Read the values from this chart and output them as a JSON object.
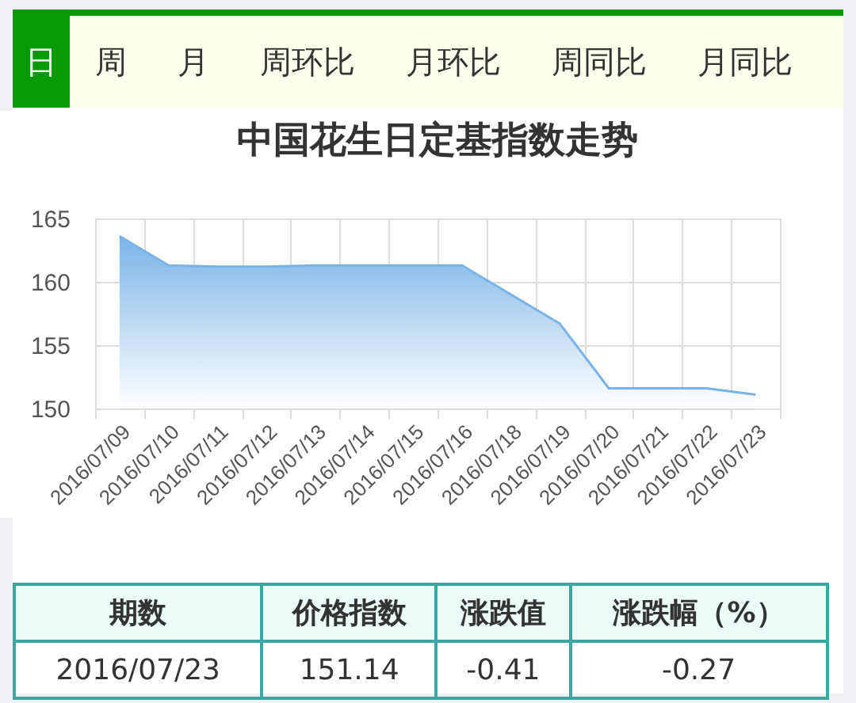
{
  "chart_data": {
    "type": "area",
    "title": "中国花生日定基指数走势",
    "categories": [
      "2016/07/09",
      "2016/07/10",
      "2016/07/11",
      "2016/07/12",
      "2016/07/13",
      "2016/07/14",
      "2016/07/15",
      "2016/07/16",
      "2016/07/18",
      "2016/07/19",
      "2016/07/20",
      "2016/07/21",
      "2016/07/22",
      "2016/07/23"
    ],
    "series": [
      {
        "color": "#7ab4e6",
        "values": [
          163.6,
          161.3,
          161.2,
          161.2,
          161.3,
          161.3,
          161.3,
          161.3,
          159.0,
          156.7,
          151.6,
          151.6,
          151.6,
          151.1
        ]
      }
    ],
    "ylim": [
      150,
      165
    ],
    "yticks": [
      150,
      155,
      160,
      165
    ],
    "grid": true,
    "annotations": [
      "日",
      "周",
      "月",
      "周环比",
      "月环比",
      "周同比",
      "月同比",
      "期数",
      "价格指数",
      "涨跌值",
      "涨跌幅（%）",
      "2016/07/23",
      "151.14",
      "-0.41",
      "-0.27"
    ]
  }
}
